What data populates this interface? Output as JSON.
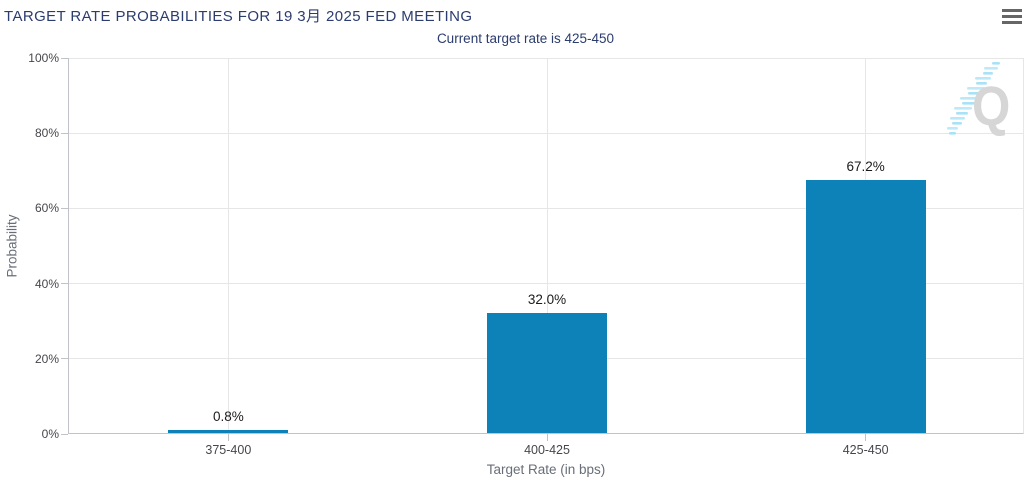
{
  "header": {
    "title": "TARGET RATE PROBABILITIES FOR 19 3月 2025 FED MEETING"
  },
  "chart_data": {
    "type": "bar",
    "title": "TARGET RATE PROBABILITIES FOR 19 3月 2025 FED MEETING",
    "subtitle": "Current target rate is 425-450",
    "categories": [
      "375-400",
      "400-425",
      "425-450"
    ],
    "values": [
      0.8,
      32.0,
      67.2
    ],
    "value_labels": [
      "0.8%",
      "32.0%",
      "67.2%"
    ],
    "xlabel": "Target Rate (in bps)",
    "ylabel": "Probability",
    "ylim": [
      0,
      100
    ],
    "ytick_step": 20,
    "ytick_labels": [
      "0%",
      "20%",
      "40%",
      "60%",
      "80%",
      "100%"
    ],
    "grid": true,
    "legend": false
  },
  "icons": {
    "menu": "hamburger-menu-icon",
    "watermark_letter": "Q"
  },
  "colors": {
    "bar": "#0d82b8",
    "title_text": "#2b3c6e",
    "subtitle_text": "#2b3c6e",
    "axis_title_text": "#686e78",
    "tick_text": "#46464c",
    "data_label_text": "#1b1b1b",
    "gridline": "#e6e6e6",
    "axis_line": "#c0c4c9",
    "watermark_gray": "#d6d6d6",
    "watermark_blue": "#a9e2f6",
    "menu_icon": "#666666"
  }
}
